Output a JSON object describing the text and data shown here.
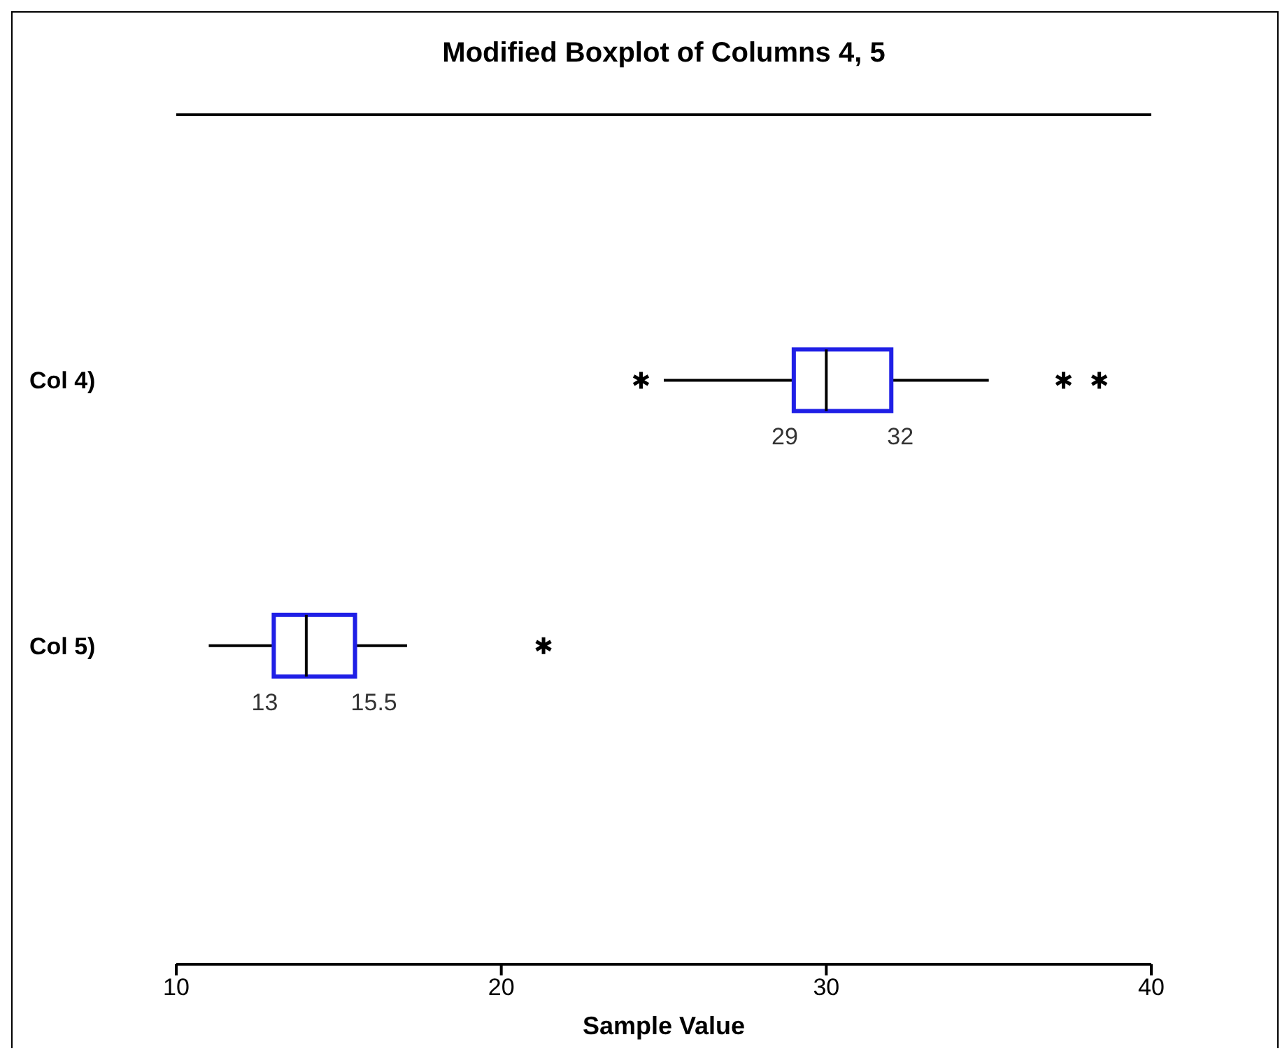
{
  "chart_data": {
    "type": "box",
    "title": "Modified Boxplot of Columns 4, 5",
    "xlabel": "Sample Value",
    "orientation": "horizontal",
    "categories": [
      "Col 4)",
      "Col 5)"
    ],
    "series": [
      {
        "color": "#1f1fe6",
        "boxes": [
          {
            "low": 25,
            "q1": 29,
            "median": 30,
            "q3": 32,
            "high": 35,
            "outliers": [
              24.3,
              37.3,
              38.4
            ]
          },
          {
            "low": 11,
            "q1": 13,
            "median": 14,
            "q3": 15.5,
            "high": 17.1,
            "outliers": [
              21.3
            ]
          }
        ]
      }
    ],
    "marker": "star",
    "annotations": [
      {
        "text": "29",
        "x": 29,
        "y": "Col 4)"
      },
      {
        "text": "32",
        "x": 32,
        "y": "Col 4)"
      },
      {
        "text": "13",
        "x": 13,
        "y": "Col 5)"
      },
      {
        "text": "15.5",
        "x": 15.5,
        "y": "Col 5)"
      }
    ],
    "xlim": [
      10,
      40
    ],
    "xticks": [
      10,
      20,
      30,
      40
    ],
    "grid": false,
    "legend": false
  }
}
